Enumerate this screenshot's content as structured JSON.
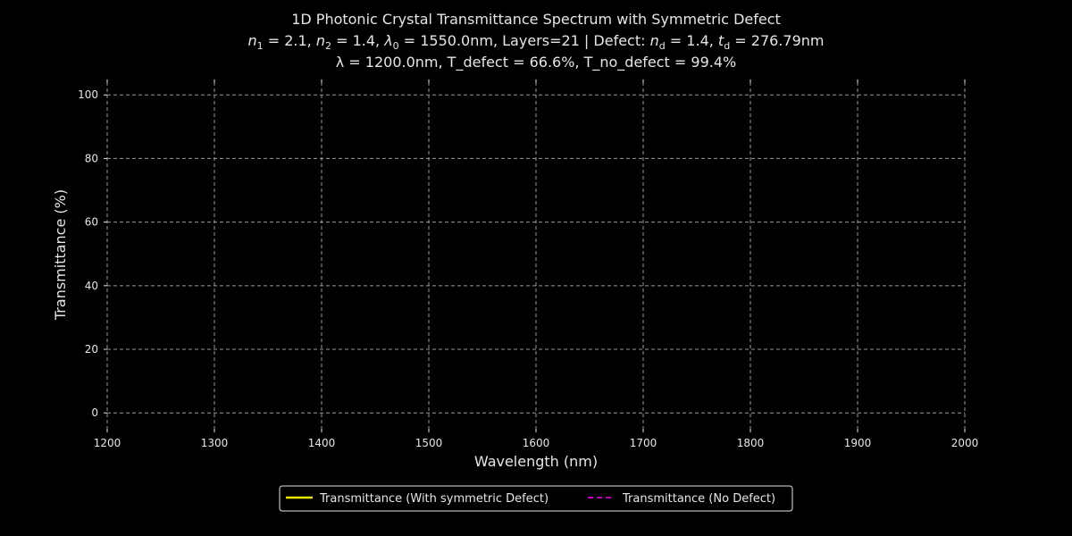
{
  "chart_data": {
    "type": "line",
    "title_line1": "1D Photonic Crystal Transmittance Spectrum with Symmetric Defect",
    "title_line2_parts": [
      "n",
      "1",
      " = 2.1, ",
      "n",
      "2",
      " = 1.4, ",
      "λ",
      "0",
      " = 1550.0nm, Layers=21 | Defect: ",
      "n",
      "d",
      " = 1.4, ",
      "t",
      "d",
      " = 276.79nm"
    ],
    "title_line3": "λ = 1200.0nm, T_defect = 66.6%, T_no_defect = 99.4%",
    "xlabel": "Wavelength (nm)",
    "ylabel": "Transmittance (%)",
    "xlim": [
      1200,
      2000
    ],
    "ylim": [
      -5,
      104
    ],
    "xticks": [
      "1200",
      "1300",
      "1400",
      "1500",
      "1600",
      "1700",
      "1800",
      "1900",
      "2000"
    ],
    "yticks": [
      "0",
      "20",
      "40",
      "60",
      "80",
      "100"
    ],
    "grid": true,
    "legend_position": "bottom-center",
    "series": [
      {
        "name": "Transmittance (With symmetric Defect)",
        "color": "#e6e600",
        "style": "solid",
        "x": [],
        "y": []
      },
      {
        "name": "Transmittance (No Defect)",
        "color": "#ff00ff",
        "style": "dashed",
        "x": [],
        "y": []
      }
    ],
    "colors": {
      "background": "#000000",
      "text": "#e6e6e6",
      "grid": "#9a9a9a"
    }
  }
}
